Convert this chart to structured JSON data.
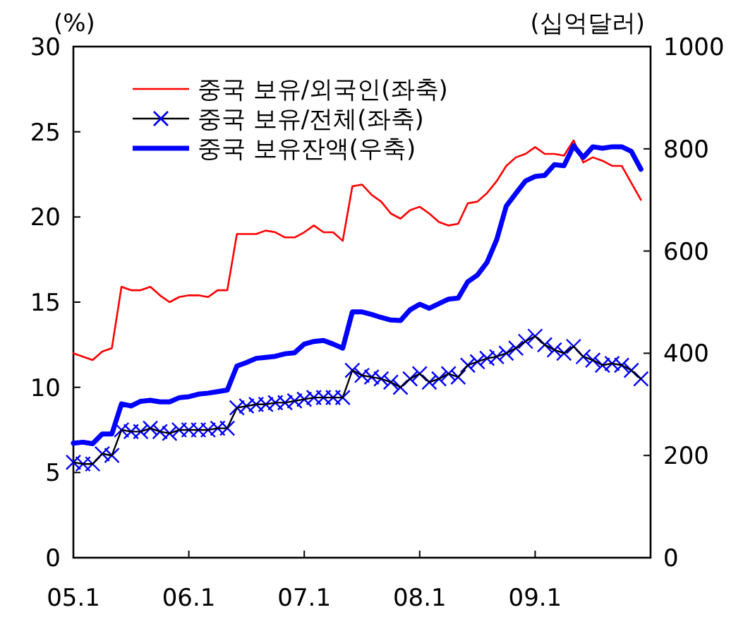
{
  "chart_data": {
    "type": "line",
    "ylabel": "(%)",
    "y2label": "(십억달러)",
    "categories": [
      "05.1",
      null,
      null,
      null,
      null,
      null,
      null,
      null,
      null,
      null,
      null,
      null,
      "06.1",
      null,
      null,
      null,
      null,
      null,
      null,
      null,
      null,
      null,
      null,
      null,
      "07.1",
      null,
      null,
      null,
      null,
      null,
      null,
      null,
      null,
      null,
      null,
      null,
      "08.1",
      null,
      null,
      null,
      null,
      null,
      null,
      null,
      null,
      null,
      null,
      null,
      "09.1",
      null,
      null,
      null,
      null,
      null,
      null,
      null,
      null,
      null,
      null,
      null
    ],
    "series": [
      {
        "name": "중국 보유/외국인(좌축)",
        "color": "#ff0000",
        "values": [
          12.0,
          11.8,
          11.6,
          12.1,
          12.3,
          15.9,
          15.7,
          15.7,
          15.9,
          15.4,
          15.0,
          15.3,
          15.4,
          15.4,
          15.3,
          15.7,
          15.7,
          19.0,
          19.0,
          19.0,
          19.2,
          19.1,
          18.8,
          18.8,
          19.1,
          19.5,
          19.1,
          19.1,
          18.6,
          21.8,
          21.9,
          21.3,
          20.9,
          20.2,
          19.9,
          20.4,
          20.6,
          20.2,
          19.7,
          19.5,
          19.6,
          20.8,
          20.9,
          21.4,
          22.1,
          23.0,
          23.5,
          23.7,
          24.1,
          23.7,
          23.7,
          23.6,
          24.5,
          23.2,
          23.5,
          23.3,
          23.0,
          23.0,
          22.0,
          21.0
        ]
      },
      {
        "name": "중국 보유/전체(좌축)",
        "color": "#0000ff",
        "marker": "cross",
        "values": [
          5.6,
          5.5,
          5.5,
          6.1,
          6.0,
          7.5,
          7.4,
          7.4,
          7.6,
          7.4,
          7.3,
          7.5,
          7.5,
          7.5,
          7.5,
          7.6,
          7.6,
          8.8,
          8.9,
          9.0,
          9.0,
          9.1,
          9.1,
          9.2,
          9.3,
          9.4,
          9.4,
          9.4,
          9.4,
          11.0,
          10.7,
          10.6,
          10.5,
          10.3,
          10.0,
          10.5,
          10.8,
          10.3,
          10.5,
          10.8,
          10.6,
          11.3,
          11.5,
          11.7,
          11.8,
          12.0,
          12.3,
          12.7,
          13.0,
          12.5,
          12.2,
          12.0,
          12.4,
          11.8,
          11.6,
          11.3,
          11.4,
          11.3,
          11.0,
          10.5
        ]
      },
      {
        "name": "중국 보유잔액(우축)",
        "color": "#0000ff",
        "axis": "y2",
        "values": [
          224,
          226,
          223,
          242,
          242,
          301,
          297,
          306,
          308,
          305,
          305,
          313,
          315,
          320,
          322,
          325,
          328,
          375,
          382,
          390,
          392,
          394,
          399,
          401,
          418,
          423,
          425,
          418,
          410,
          481,
          481,
          476,
          470,
          465,
          464,
          485,
          496,
          488,
          497,
          506,
          508,
          540,
          553,
          578,
          622,
          688,
          713,
          737,
          746,
          748,
          769,
          767,
          806,
          783,
          804,
          801,
          804,
          804,
          795,
          760
        ]
      }
    ],
    "ylim": [
      0,
      30
    ],
    "yticks": [
      0,
      5,
      10,
      15,
      20,
      25,
      30
    ],
    "y2lim": [
      0,
      1000
    ],
    "y2ticks": [
      0,
      200,
      400,
      600,
      800,
      1000
    ],
    "legend": "top left",
    "grid": false,
    "marker": "none"
  }
}
